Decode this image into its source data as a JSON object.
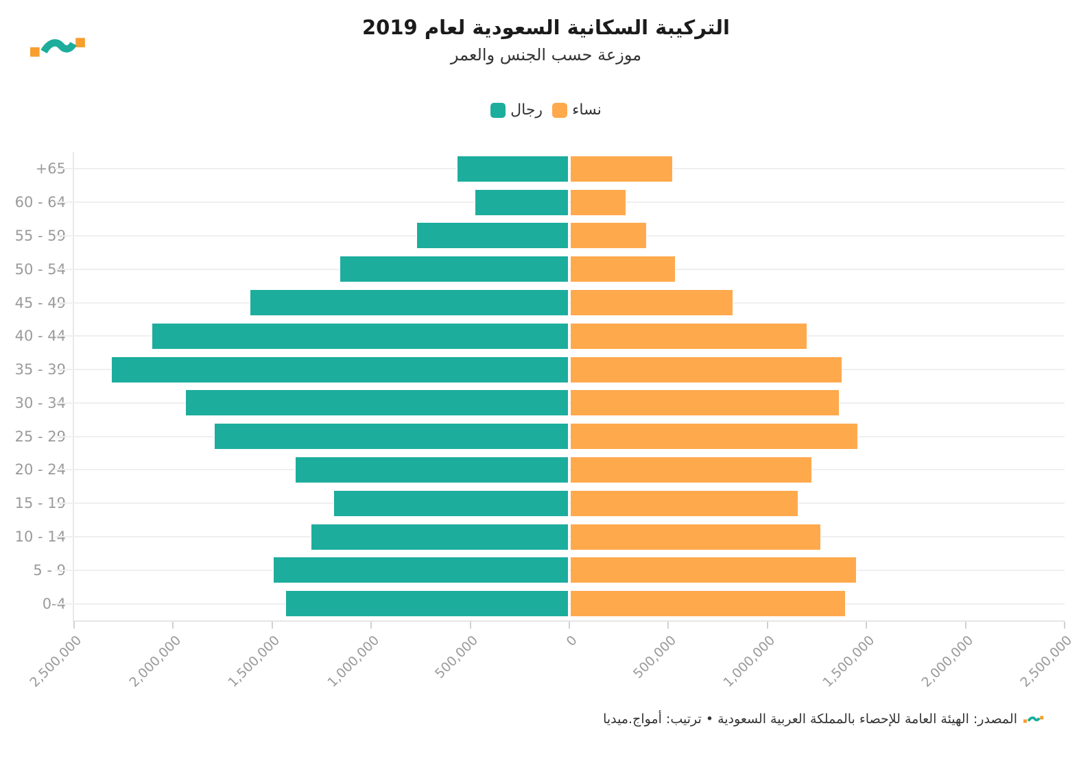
{
  "footer": {
    "source_text": "المصدر: الهيئة العامة للإحصاء بالمملكة العربية السعودية • ترتيب: أمواج.ميديا"
  },
  "colors": {
    "men": "#1CAD9D",
    "women": "#FFA94D",
    "grid": "#EFEFEF",
    "axis_label": "#9A9A9A",
    "logo_orange": "#F89E2F"
  },
  "chart_data": {
    "type": "bar",
    "subtype": "population-pyramid",
    "title": "التركيبة السكانية السعودية لعام 2019",
    "subtitle": "موزعة حسب الجنس والعمر",
    "legend_position": "top-center",
    "grid": true,
    "categories_top_to_bottom": [
      "+65",
      "60 - 64",
      "55 - 59",
      "50 - 54",
      "45 - 49",
      "40 - 44",
      "35 - 39",
      "30 - 34",
      "25 - 29",
      "20 - 24",
      "15 - 19",
      "10 - 14",
      "5 - 9",
      "0-4"
    ],
    "series": [
      {
        "name": "رجال",
        "side": "left",
        "color": "#1CAD9D",
        "values": [
          565000,
          475000,
          770000,
          1160000,
          1615000,
          2110000,
          2315000,
          1940000,
          1795000,
          1385000,
          1190000,
          1305000,
          1495000,
          1435000
        ]
      },
      {
        "name": "نساء",
        "side": "right",
        "color": "#FFA94D",
        "values": [
          520000,
          285000,
          390000,
          535000,
          825000,
          1200000,
          1380000,
          1365000,
          1460000,
          1225000,
          1155000,
          1270000,
          1450000,
          1395000
        ]
      }
    ],
    "xlim": [
      0,
      2500000
    ],
    "x_tick_interval": 500000,
    "x_tick_labels": [
      "2,500,000",
      "2,000,000",
      "1,500,000",
      "1,000,000",
      "500,000",
      "0",
      "500,000",
      "1,000,000",
      "1,500,000",
      "2,000,000",
      "2,500,000"
    ]
  }
}
